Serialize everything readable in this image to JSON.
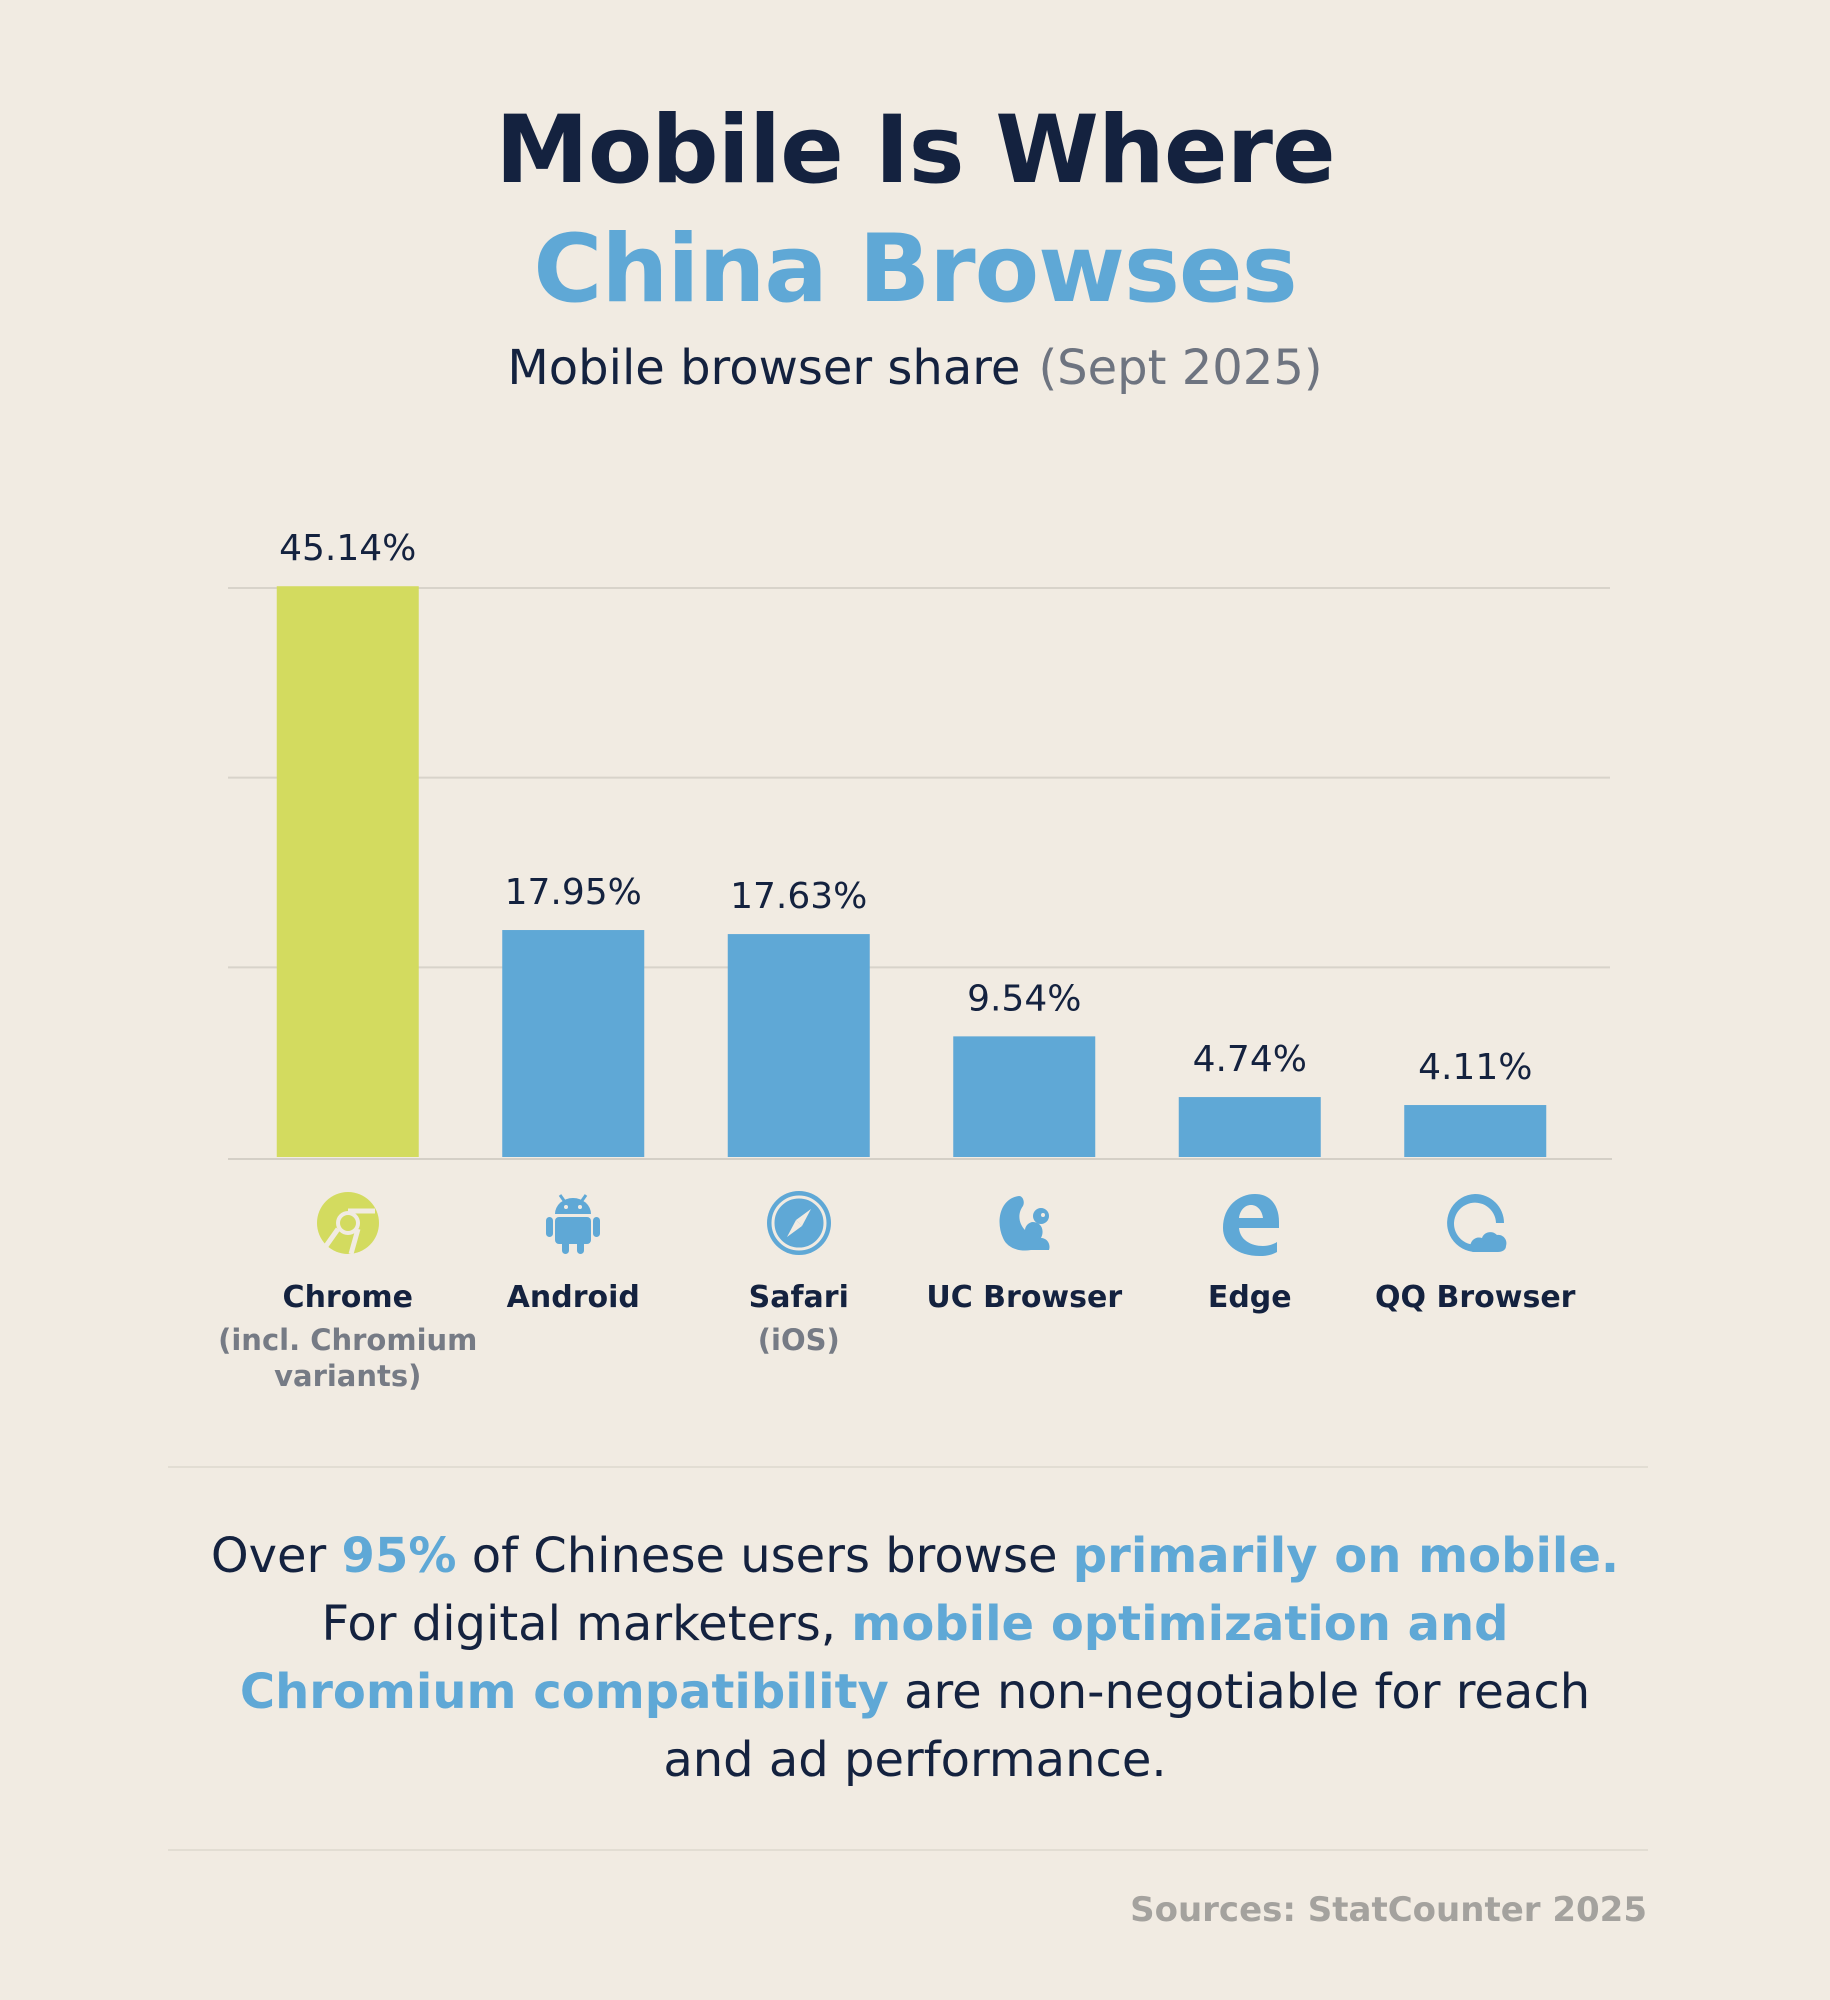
{
  "header": {
    "title_line1": "Mobile Is Where",
    "title_line2": "China Browses",
    "subtitle": "Mobile browser share",
    "period": "(Sept 2025)"
  },
  "colors": {
    "background": "#f1ebe2",
    "highlight_bar": "#d3db5f",
    "bar": "#5fa8d6",
    "text_dark": "#14223f",
    "accent": "#5fa8d6"
  },
  "chart_data": {
    "type": "bar",
    "categories": [
      "Chrome",
      "Android",
      "Safari",
      "UC Browser",
      "Edge",
      "QQ Browser"
    ],
    "category_notes": [
      "(incl. Chromium variants)",
      "",
      "(iOS)",
      "",
      "",
      ""
    ],
    "values": [
      45.14,
      17.95,
      17.63,
      9.54,
      4.74,
      4.11
    ],
    "value_labels": [
      "45.14%",
      "17.95%",
      "17.63%",
      "9.54%",
      "4.74%",
      "4.11%"
    ],
    "icons": [
      "chrome-icon",
      "android-icon",
      "safari-icon",
      "uc-browser-icon",
      "edge-icon",
      "qq-browser-icon"
    ],
    "highlight_index": 0,
    "ylim": [
      0,
      45
    ],
    "grid": true,
    "title": "Mobile browser share",
    "xlabel": "",
    "ylabel": ""
  },
  "message": {
    "p1": "Over ",
    "h1": "95%",
    "p2": " of Chinese users browse ",
    "h2": "primarily on mobile.",
    "p3": " For digital marketers, ",
    "h3": "mobile optimization and Chromium compatibility",
    "p4": " are non-negotiable for reach and ad performance."
  },
  "footer": {
    "sources": "Sources: StatCounter 2025"
  }
}
